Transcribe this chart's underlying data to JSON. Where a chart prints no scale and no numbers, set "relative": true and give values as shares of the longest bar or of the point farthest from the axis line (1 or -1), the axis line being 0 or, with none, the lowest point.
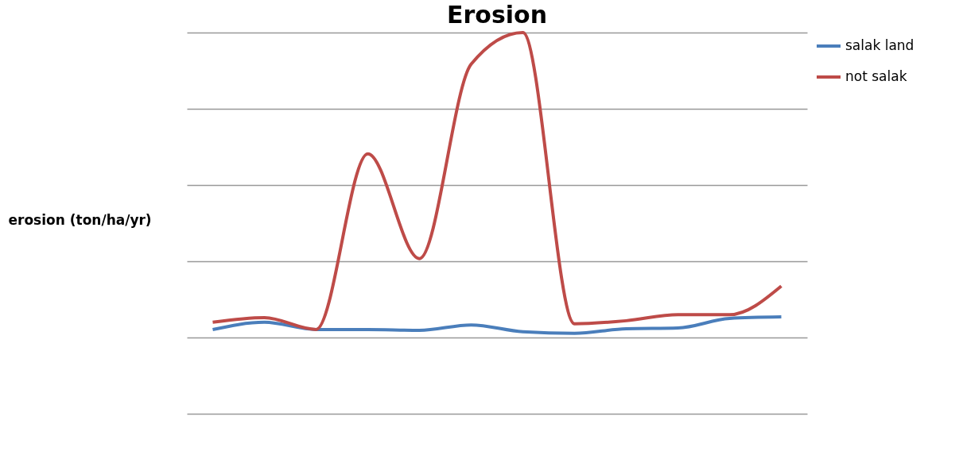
{
  "chart_data": {
    "type": "line",
    "title": "Erosion",
    "ylabel": "erosion (ton/ha/yr)",
    "relative": true,
    "grid": "y",
    "legend": "right",
    "marker": "none",
    "categories": [
      null,
      null,
      null,
      null,
      null,
      null,
      null,
      null,
      null,
      null,
      null,
      null
    ],
    "series": [
      {
        "name": "salak land",
        "color": "#4a7ebb",
        "values": [
          0.221,
          0.24,
          0.221,
          0.221,
          0.219,
          0.233,
          0.215,
          0.211,
          0.223,
          0.225,
          0.25,
          0.254
        ]
      },
      {
        "name": "not salak",
        "color": "#be4b48",
        "values": [
          0.24,
          0.252,
          0.221,
          0.682,
          0.407,
          0.917,
          1,
          0.236,
          0.244,
          0.26,
          0.26,
          0.335
        ]
      }
    ]
  }
}
